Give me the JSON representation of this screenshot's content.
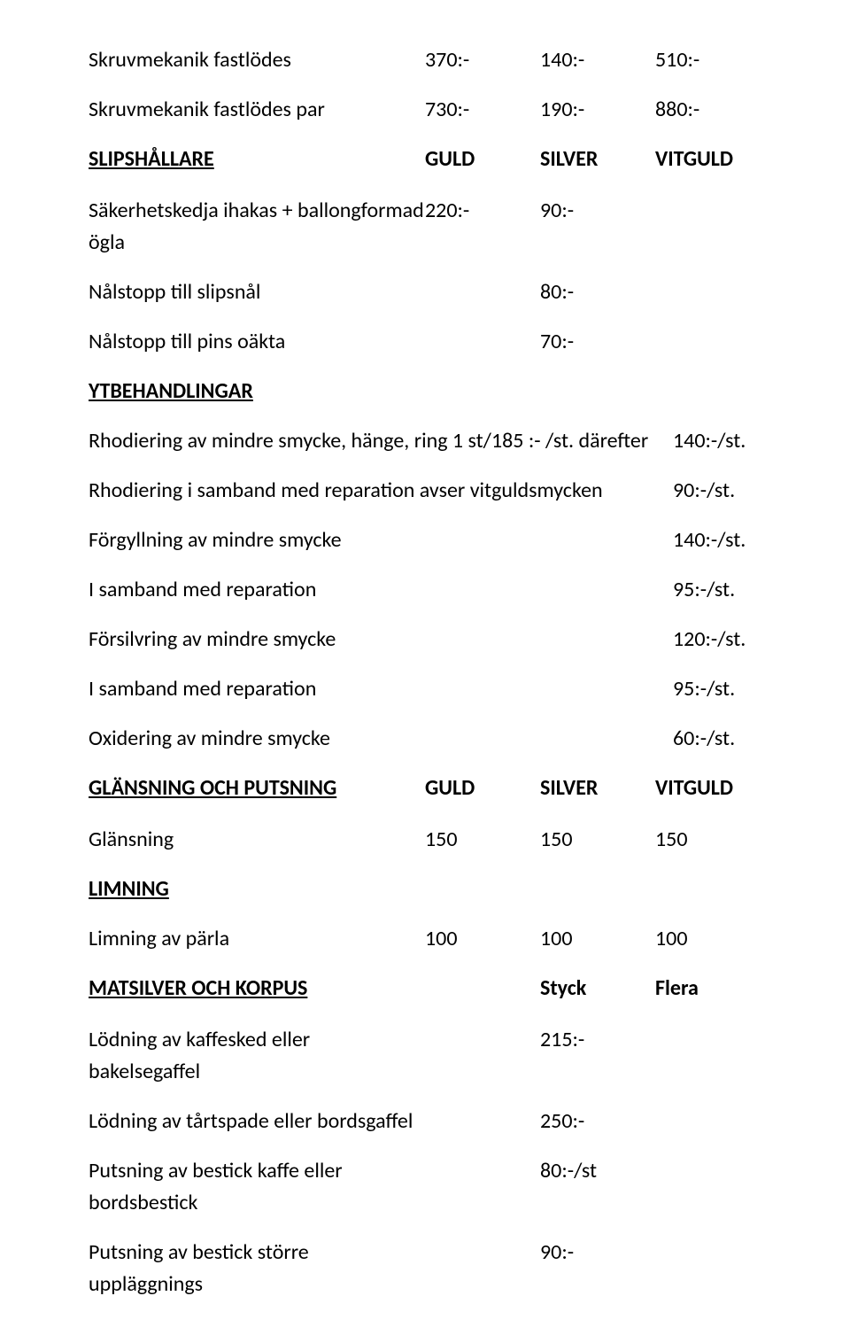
{
  "rows1": [
    {
      "label": "Skruvmekanik fastlödes",
      "v1": "370:-",
      "v2": "140:-",
      "v3": "510:-"
    },
    {
      "label": "Skruvmekanik fastlödes par",
      "v1": "730:-",
      "v2": "190:-",
      "v3": "880:-"
    }
  ],
  "header_slip": {
    "title": "SLIPSHÅLLARE",
    "h1": "GULD",
    "h2": "SILVER",
    "h3": "VITGULD"
  },
  "rows_slip": [
    {
      "label": "Säkerhetskedja ihakas + ballongformad ögla",
      "v1": "220:-",
      "v2": "90:-",
      "v3": ""
    }
  ],
  "rows_two": [
    {
      "label": "Nålstopp till slipsnål",
      "val": "80:-"
    },
    {
      "label": "Nålstopp till pins oäkta",
      "val": "70:-"
    }
  ],
  "ytb_title": "YTBEHANDLINGAR",
  "ytb_rows": [
    {
      "label": "Rhodiering av mindre smycke, hänge, ring 1 st/185 :- /st.  därefter",
      "val": "140:-/st."
    },
    {
      "label": "Rhodiering i samband med reparation avser vitguldsmycken",
      "val": "90:-/st."
    },
    {
      "label": "Förgyllning av mindre smycke",
      "val": "140:-/st."
    },
    {
      "label": "I samband med reparation",
      "val": " 95:-/st."
    },
    {
      "label": "Försilvring av mindre smycke",
      "val": "120:-/st."
    },
    {
      "label": "I samband med reparation",
      "val": "95:-/st."
    },
    {
      "label": "Oxidering av mindre smycke",
      "val": "60:-/st."
    }
  ],
  "header_glans": {
    "title": "GLÄNSNING OCH PUTSNING",
    "h1": "GULD",
    "h2": "SILVER",
    "h3": "VITGULD"
  },
  "rows_glans": [
    {
      "label": "Glänsning",
      "v1": "150",
      "v2": "150",
      "v3": "150"
    }
  ],
  "limning_title": "LIMNING",
  "rows_limning": [
    {
      "label": "Limning av pärla",
      "v1": "100",
      "v2": "100",
      "v3": "100"
    }
  ],
  "header_korpus": {
    "title": "MATSILVER OCH KORPUS",
    "h1": "Styck",
    "h2": "Flera"
  },
  "rows_korpus": [
    {
      "label": "Lödning av kaffesked eller bakelsegaffel",
      "val": "215:-"
    },
    {
      "label": "Lödning av tårtspade eller bordsgaffel",
      "val": "250:-"
    },
    {
      "label": "Putsning av bestick kaffe eller bordsbestick",
      "val": "80:-/st"
    },
    {
      "label": "Putsning av bestick större uppläggnings",
      "val": "90:-"
    }
  ]
}
